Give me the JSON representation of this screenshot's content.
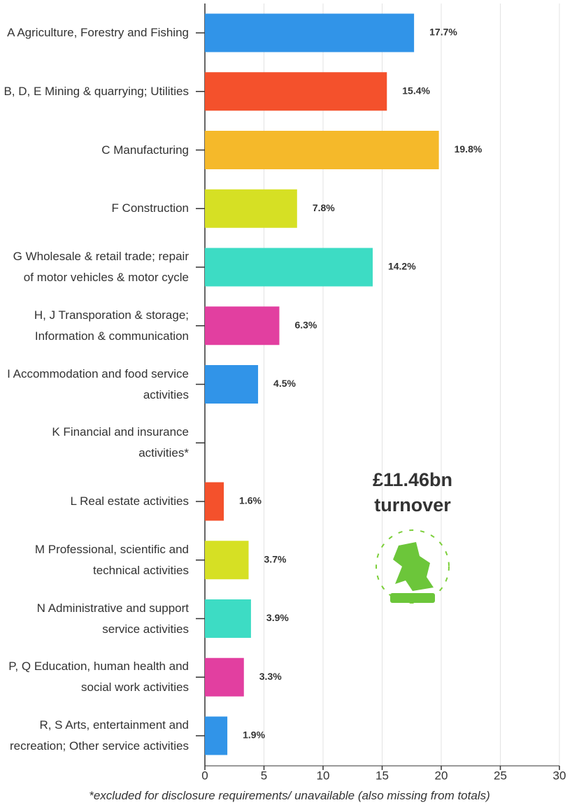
{
  "chart_data": {
    "type": "bar",
    "orientation": "horizontal",
    "categories": [
      "A Agriculture, Forestry and Fishing",
      "B, D, E Mining & quarrying; Utilities",
      "C Manufacturing",
      "F Construction",
      "G Wholesale & retail trade; repair of motor vehicles & motor cycle",
      "H, J Transporation & storage; Information & communication",
      "I Accommodation and food service activities",
      "K Financial and insurance activities*",
      "L Real estate activities",
      "M Professional, scientific and technical activities",
      "N Administrative and support service activities",
      "P, Q Education, human health and social work activities",
      "R, S Arts, entertainment and recreation; Other service activities"
    ],
    "values": [
      17.7,
      15.4,
      19.8,
      7.8,
      14.2,
      6.3,
      4.5,
      null,
      1.6,
      3.7,
      3.9,
      3.3,
      1.9
    ],
    "value_labels": [
      "17.7%",
      "15.4%",
      "19.8%",
      "7.8%",
      "14.2%",
      "6.3%",
      "4.5%",
      null,
      "1.6%",
      "3.7%",
      "3.9%",
      "3.3%",
      "1.9%"
    ],
    "colors": [
      "#3194e8",
      "#f4512c",
      "#f5b92a",
      "#d6e024",
      "#3ddcc4",
      "#e23fa0",
      "#3194e8",
      null,
      "#f4512c",
      "#d6e024",
      "#3ddcc4",
      "#e23fa0",
      "#3194e8"
    ],
    "xlim": [
      0,
      30
    ],
    "xticks": [
      0,
      5,
      10,
      15,
      20,
      25,
      30
    ],
    "grid": true,
    "annotation": "£11.46bn turnover",
    "footnote": "*excluded for disclosure requirements/ unavailable (also missing from totals)"
  }
}
